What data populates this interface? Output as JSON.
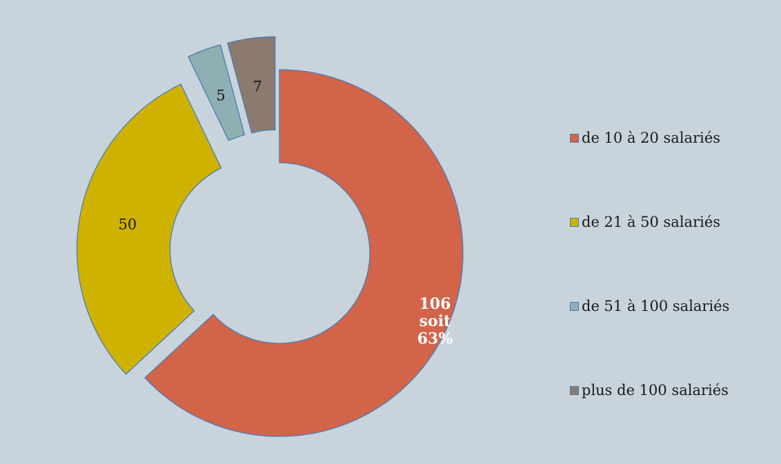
{
  "chart_data": {
    "type": "pie",
    "categories": [
      "de 10 à 20 salariés",
      "de 21 à 50 salariés",
      "de 51 à 100 salariés",
      "plus de 100 salariés"
    ],
    "values": [
      106,
      50,
      5,
      7
    ],
    "data_labels": [
      "106\nsoit\n63%",
      "50",
      "5",
      "7"
    ],
    "colors": [
      "#d2644a",
      "#cfb200",
      "#8eb0b3",
      "#8b7a6d"
    ],
    "label_colors": [
      "#ffffff",
      "#1a1a1a",
      "#1a1a1a",
      "#1a1a1a"
    ],
    "outline_color": "#4a7bb5",
    "legend_placement": "right"
  }
}
